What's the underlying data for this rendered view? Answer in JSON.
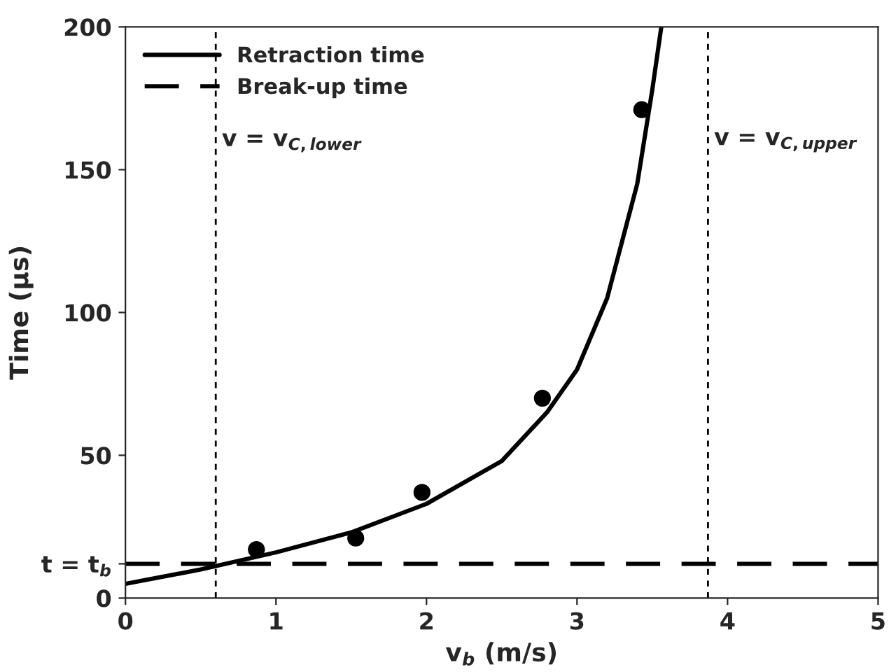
{
  "chart_data": {
    "type": "line",
    "xlabel": "v$_{b}$ (m/s)",
    "ylabel": "Time (µs)",
    "xlim": [
      0,
      5
    ],
    "ylim": [
      0,
      200
    ],
    "xticks": [
      0,
      1,
      2,
      3,
      4,
      5
    ],
    "yticks": [
      0,
      {
        "value": 12,
        "label": "t = t$_{b}$"
      },
      50,
      100,
      150,
      200
    ],
    "series": [
      {
        "name": "Retraction time",
        "color": "#000000",
        "line_style": "solid",
        "x": [
          0,
          0.5,
          1,
          1.5,
          2,
          2.5,
          2.8,
          3.0,
          3.2,
          3.4,
          3.5,
          3.56
        ],
        "values": [
          5,
          10,
          16,
          23,
          33,
          48,
          65,
          80,
          105,
          145,
          178,
          200
        ]
      },
      {
        "name": "Break-up time",
        "color": "#000000",
        "line_style": "dashed",
        "x": [
          0,
          5
        ],
        "values": [
          12,
          12
        ]
      },
      {
        "type": "scatter",
        "color": "#000000",
        "marker": "circle",
        "x": [
          0.87,
          1.53,
          1.97,
          2.77,
          3.43
        ],
        "values": [
          17,
          21,
          37,
          70,
          171
        ]
      }
    ],
    "ref_lines": [
      {
        "axis": "x",
        "value": 0.6,
        "label": "v = v$_{C,lower}$",
        "line_style": "dashed",
        "color": "#000000"
      },
      {
        "axis": "x",
        "value": 3.87,
        "label": "v = v$_{C,upper}$",
        "line_style": "dashed",
        "color": "#000000"
      }
    ],
    "legend": "top left",
    "grid": false
  }
}
